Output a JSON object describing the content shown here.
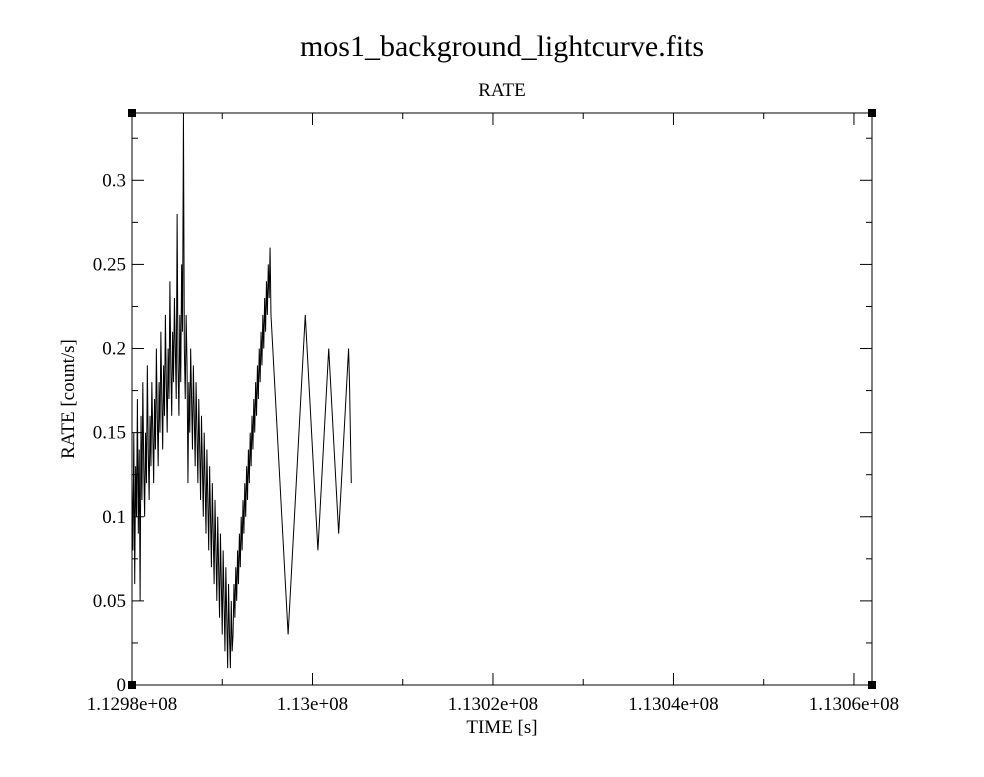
{
  "chart_data": {
    "type": "line",
    "title": "mos1_background_lightcurve.fits",
    "subtitle": "RATE",
    "xlabel": "TIME [s]",
    "ylabel": "RATE [count/s]",
    "xlim": [
      112980000,
      113062000
    ],
    "ylim": [
      0,
      0.34
    ],
    "x_ticks": [
      {
        "value": 112980000,
        "label": "1.1298e+08"
      },
      {
        "value": 113000000,
        "label": "1.13e+08"
      },
      {
        "value": 113020000,
        "label": "1.1302e+08"
      },
      {
        "value": 113040000,
        "label": "1.1304e+08"
      },
      {
        "value": 113060000,
        "label": "1.1306e+08"
      }
    ],
    "y_ticks": [
      {
        "value": 0,
        "label": "0"
      },
      {
        "value": 0.05,
        "label": "0.05"
      },
      {
        "value": 0.1,
        "label": "0.1"
      },
      {
        "value": 0.15,
        "label": "0.15"
      },
      {
        "value": 0.2,
        "label": "0.2"
      },
      {
        "value": 0.25,
        "label": "0.25"
      },
      {
        "value": 0.3,
        "label": "0.3"
      }
    ],
    "grid": false,
    "series": [
      {
        "x_start": 112980000,
        "x_step": 100,
        "values": [
          0.12,
          0.08,
          0.15,
          0.06,
          0.13,
          0.1,
          0.17,
          0.09,
          0.14,
          0.05,
          0.16,
          0.11,
          0.18,
          0.13,
          0.1,
          0.15,
          0.12,
          0.19,
          0.14,
          0.11,
          0.16,
          0.13,
          0.18,
          0.15,
          0.12,
          0.17,
          0.14,
          0.2,
          0.16,
          0.13,
          0.18,
          0.15,
          0.21,
          0.17,
          0.14,
          0.19,
          0.16,
          0.22,
          0.18,
          0.15,
          0.2,
          0.17,
          0.24,
          0.19,
          0.16,
          0.21,
          0.18,
          0.23,
          0.2,
          0.17,
          0.28,
          0.19,
          0.16,
          0.22,
          0.18,
          0.25,
          0.21,
          0.34,
          0.2,
          0.17,
          0.22,
          0.19,
          0.12,
          0.18,
          0.15,
          0.2,
          0.17,
          0.14,
          0.19,
          0.16,
          0.13,
          0.18,
          0.15,
          0.12,
          0.17,
          0.14,
          0.11,
          0.16,
          0.13,
          0.1,
          0.15,
          0.12,
          0.09,
          0.14,
          0.11,
          0.08,
          0.13,
          0.1,
          0.07,
          0.12,
          0.09,
          0.06,
          0.11,
          0.08,
          0.05,
          0.1,
          0.07,
          0.04,
          0.09,
          0.06,
          0.03,
          0.08,
          0.05,
          0.02,
          0.07,
          0.04,
          0.01,
          0.06,
          0.03,
          0.01,
          0.05,
          0.02,
          0.03,
          0.06,
          0.04,
          0.07,
          0.05,
          0.08,
          0.06,
          0.09,
          0.07,
          0.1,
          0.08,
          0.11,
          0.09,
          0.12,
          0.1,
          0.13,
          0.11,
          0.14,
          0.12,
          0.15,
          0.13,
          0.16,
          0.14,
          0.17,
          0.15,
          0.18,
          0.16,
          0.19,
          0.17,
          0.2,
          0.18,
          0.21,
          0.19,
          0.22,
          0.2,
          0.23,
          0.21,
          0.24,
          0.22,
          0.25,
          0.23,
          0.26,
          0.22,
          0.21,
          0.2,
          0.19,
          0.18,
          0.17,
          0.16,
          0.15,
          0.14,
          0.13,
          0.12,
          0.11,
          0.1,
          0.09,
          0.08,
          0.07,
          0.06,
          0.05,
          0.04,
          0.03,
          0.04,
          0.05,
          0.06,
          0.07,
          0.08,
          0.09,
          0.1,
          0.11,
          0.12,
          0.13,
          0.14,
          0.15,
          0.16,
          0.17,
          0.18,
          0.19,
          0.2,
          0.21,
          0.22,
          0.21,
          0.2,
          0.19,
          0.18,
          0.17,
          0.16,
          0.15,
          0.14,
          0.13,
          0.12,
          0.11,
          0.1,
          0.09,
          0.08,
          0.09,
          0.1,
          0.11,
          0.12,
          0.13,
          0.14,
          0.15,
          0.16,
          0.17,
          0.18,
          0.19,
          0.2,
          0.19,
          0.18,
          0.17,
          0.16,
          0.15,
          0.14,
          0.13,
          0.12,
          0.11,
          0.1,
          0.09,
          0.1,
          0.11,
          0.12,
          0.13,
          0.14,
          0.15,
          0.16,
          0.17,
          0.18,
          0.19,
          0.2,
          0.18,
          0.15,
          0.12
        ]
      }
    ]
  }
}
